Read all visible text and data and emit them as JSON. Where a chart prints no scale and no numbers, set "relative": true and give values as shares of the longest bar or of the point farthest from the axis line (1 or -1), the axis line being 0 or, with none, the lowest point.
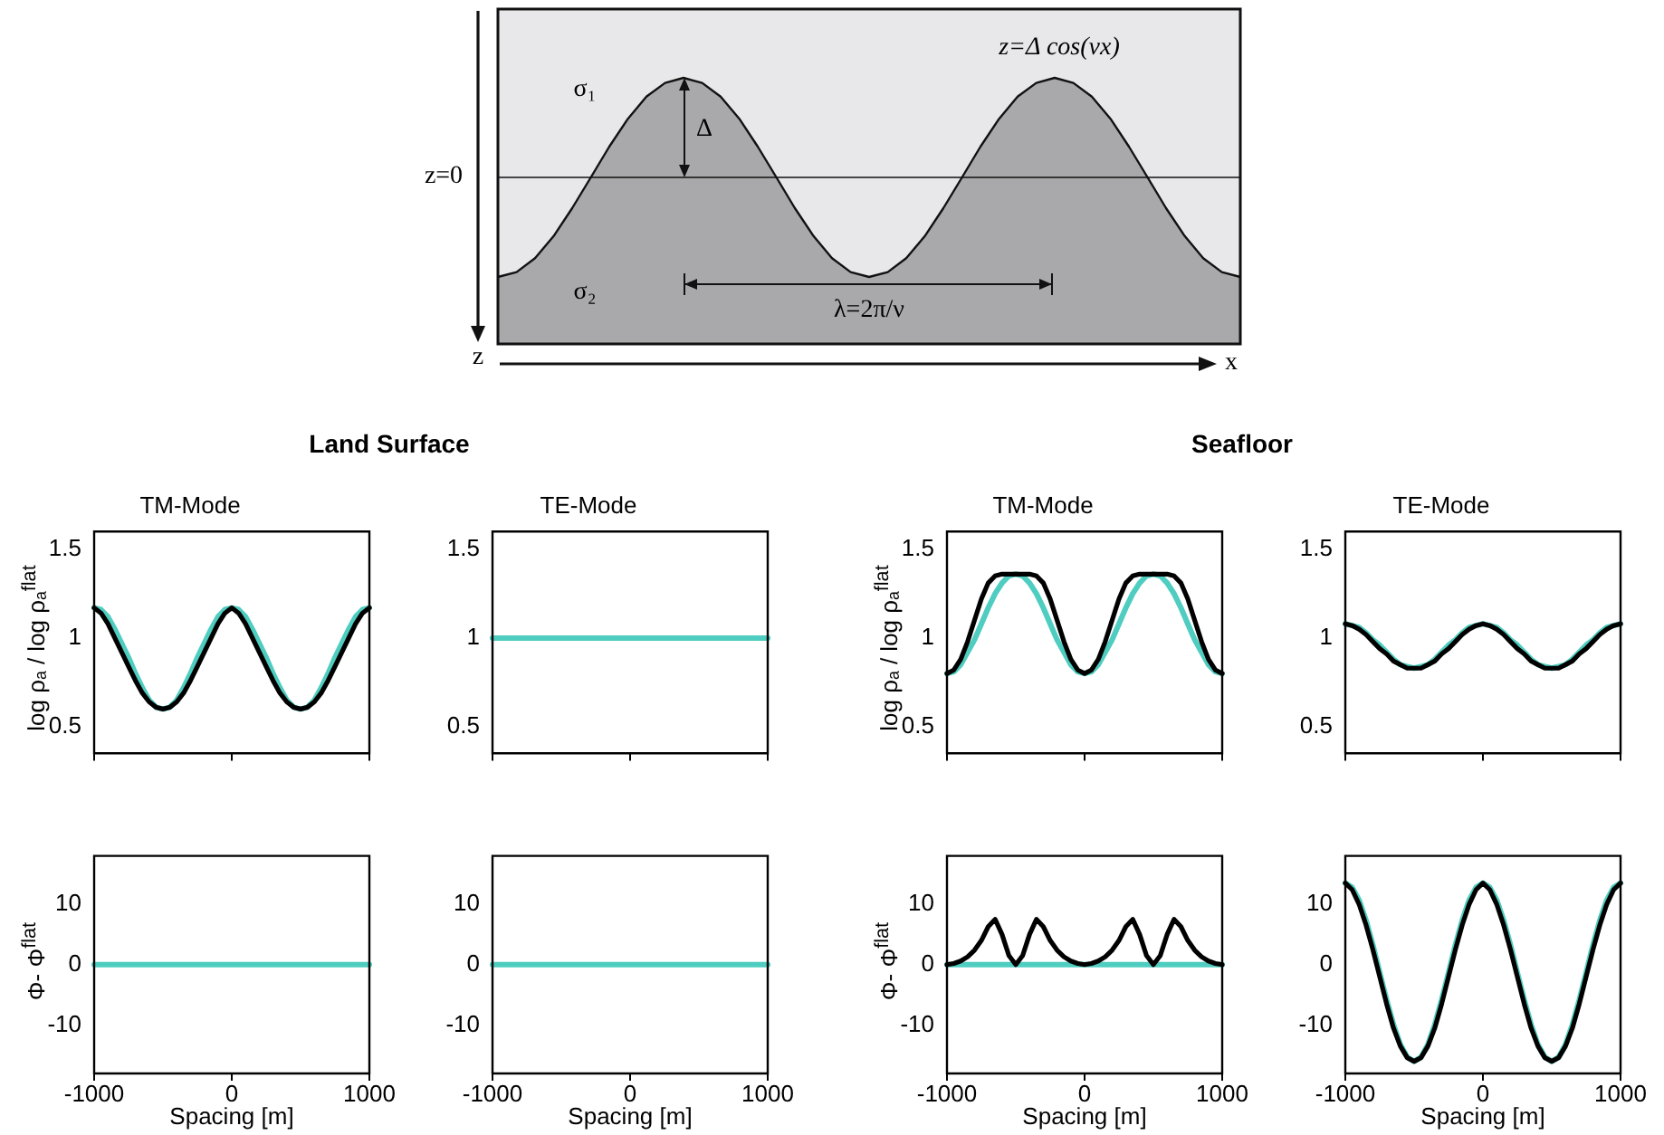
{
  "chart_data": [
    {
      "type": "area",
      "relative": true,
      "annotations": [
        "z=Δ cos(νx)",
        "σ₁",
        "σ₂",
        "Δ",
        "λ=2π/ν",
        "z",
        "x"
      ],
      "ref_lines": [
        {
          "axis": "y",
          "value": 0,
          "label": "z=0"
        }
      ],
      "categories": [
        null,
        null,
        null,
        null,
        null,
        null,
        null,
        null,
        null,
        null,
        null,
        null,
        null,
        null,
        null,
        null,
        null,
        null,
        null,
        null,
        null,
        null,
        null,
        null,
        null,
        null,
        null,
        null,
        null,
        null,
        null,
        null,
        null,
        null,
        null,
        null,
        null,
        null,
        null,
        null,
        null
      ],
      "series": [
        {
          "color": "#a9a9ab",
          "values": [
            -1,
            -0.95,
            -0.81,
            -0.59,
            -0.31,
            0,
            0.31,
            0.59,
            0.81,
            0.95,
            1,
            0.95,
            0.81,
            0.59,
            0.31,
            0,
            -0.31,
            -0.59,
            -0.81,
            -0.95,
            -1,
            -0.95,
            -0.81,
            -0.59,
            -0.31,
            0,
            0.31,
            0.59,
            0.81,
            0.95,
            1,
            0.95,
            0.81,
            0.59,
            0.31,
            0,
            -0.31,
            -0.59,
            -0.81,
            -0.95,
            -1
          ]
        }
      ]
    },
    {
      "type": "line",
      "title": "TM-Mode",
      "annotations": [
        "Land Surface"
      ],
      "ylabel": "log ρₐ / log ρₐ$^{flat}$",
      "xlim": [
        -1000,
        1000
      ],
      "xticks": [
        -1000,
        0,
        1000
      ],
      "ylim": [
        0.35,
        1.6
      ],
      "yticks": [
        0.5,
        1,
        1.5
      ],
      "tick_labels": "y",
      "x": [
        -1000,
        -950,
        -900,
        -850,
        -800,
        -750,
        -700,
        -650,
        -600,
        -550,
        -500,
        -450,
        -400,
        -350,
        -300,
        -250,
        -200,
        -150,
        -100,
        -50,
        0,
        50,
        100,
        150,
        200,
        250,
        300,
        350,
        400,
        450,
        500,
        550,
        600,
        650,
        700,
        750,
        800,
        850,
        900,
        950,
        1000
      ],
      "series": [
        {
          "color": "#000000",
          "values": [
            1.17,
            1.14,
            1.08,
            1,
            0.92,
            0.84,
            0.76,
            0.69,
            0.64,
            0.61,
            0.6,
            0.61,
            0.64,
            0.69,
            0.76,
            0.84,
            0.92,
            1,
            1.08,
            1.14,
            1.17,
            1.14,
            1.08,
            1,
            0.92,
            0.84,
            0.76,
            0.69,
            0.64,
            0.61,
            0.6,
            0.61,
            0.64,
            0.69,
            0.76,
            0.84,
            0.92,
            1,
            1.08,
            1.14,
            1.17
          ]
        },
        {
          "color": "#4ecdc0",
          "values": [
            1.17,
            1.16,
            1.12,
            1.05,
            0.97,
            0.89,
            0.8,
            0.72,
            0.65,
            0.61,
            0.6,
            0.61,
            0.65,
            0.72,
            0.8,
            0.89,
            0.97,
            1.05,
            1.12,
            1.16,
            1.17,
            1.16,
            1.12,
            1.05,
            0.97,
            0.89,
            0.8,
            0.72,
            0.65,
            0.61,
            0.6,
            0.61,
            0.65,
            0.72,
            0.8,
            0.89,
            0.97,
            1.05,
            1.12,
            1.16,
            1.17
          ]
        }
      ]
    },
    {
      "type": "line",
      "title": "TE-Mode",
      "xlim": [
        -1000,
        1000
      ],
      "xticks": [
        -1000,
        0,
        1000
      ],
      "ylim": [
        0.35,
        1.6
      ],
      "yticks": [
        0.5,
        1,
        1.5
      ],
      "tick_labels": "y",
      "x": [
        -1000,
        -950,
        -900,
        -850,
        -800,
        -750,
        -700,
        -650,
        -600,
        -550,
        -500,
        -450,
        -400,
        -350,
        -300,
        -250,
        -200,
        -150,
        -100,
        -50,
        0,
        50,
        100,
        150,
        200,
        250,
        300,
        350,
        400,
        450,
        500,
        550,
        600,
        650,
        700,
        750,
        800,
        850,
        900,
        950,
        1000
      ],
      "series": [
        {
          "color": "#4ecdc0",
          "values": [
            1,
            1,
            1,
            1,
            1,
            1,
            1,
            1,
            1,
            1,
            1,
            1,
            1,
            1,
            1,
            1,
            1,
            1,
            1,
            1,
            1,
            1,
            1,
            1,
            1,
            1,
            1,
            1,
            1,
            1,
            1,
            1,
            1,
            1,
            1,
            1,
            1,
            1,
            1,
            1,
            1
          ]
        }
      ]
    },
    {
      "type": "line",
      "title": "TM-Mode",
      "annotations": [
        "Seafloor"
      ],
      "ylabel": "log ρₐ / log ρₐ$^{flat}$",
      "xlim": [
        -1000,
        1000
      ],
      "xticks": [
        -1000,
        0,
        1000
      ],
      "ylim": [
        0.35,
        1.6
      ],
      "yticks": [
        0.5,
        1,
        1.5
      ],
      "tick_labels": "y",
      "x": [
        -1000,
        -950,
        -900,
        -850,
        -800,
        -750,
        -700,
        -650,
        -600,
        -550,
        -500,
        -450,
        -400,
        -350,
        -300,
        -250,
        -200,
        -150,
        -100,
        -50,
        0,
        50,
        100,
        150,
        200,
        250,
        300,
        350,
        400,
        450,
        500,
        550,
        600,
        650,
        700,
        750,
        800,
        850,
        900,
        950,
        1000
      ],
      "series": [
        {
          "color": "#000000",
          "values": [
            0.8,
            0.82,
            0.88,
            0.98,
            1.1,
            1.22,
            1.31,
            1.35,
            1.36,
            1.36,
            1.36,
            1.36,
            1.36,
            1.35,
            1.31,
            1.22,
            1.1,
            0.98,
            0.88,
            0.82,
            0.8,
            0.82,
            0.88,
            0.98,
            1.1,
            1.22,
            1.31,
            1.35,
            1.36,
            1.36,
            1.36,
            1.36,
            1.36,
            1.35,
            1.31,
            1.22,
            1.1,
            0.98,
            0.88,
            0.82,
            0.8
          ]
        },
        {
          "color": "#4ecdc0",
          "values": [
            0.8,
            0.81,
            0.85,
            0.92,
            0.99,
            1.08,
            1.17,
            1.25,
            1.31,
            1.35,
            1.36,
            1.35,
            1.31,
            1.25,
            1.17,
            1.08,
            0.99,
            0.92,
            0.85,
            0.81,
            0.8,
            0.81,
            0.85,
            0.92,
            0.99,
            1.08,
            1.17,
            1.25,
            1.31,
            1.35,
            1.36,
            1.35,
            1.31,
            1.25,
            1.17,
            1.08,
            0.99,
            0.92,
            0.85,
            0.81,
            0.8
          ]
        }
      ]
    },
    {
      "type": "line",
      "title": "TE-Mode",
      "xlim": [
        -1000,
        1000
      ],
      "xticks": [
        -1000,
        0,
        1000
      ],
      "ylim": [
        0.35,
        1.6
      ],
      "yticks": [
        0.5,
        1,
        1.5
      ],
      "tick_labels": "y",
      "x": [
        -1000,
        -950,
        -900,
        -850,
        -800,
        -750,
        -700,
        -650,
        -600,
        -550,
        -500,
        -450,
        -400,
        -350,
        -300,
        -250,
        -200,
        -150,
        -100,
        -50,
        0,
        50,
        100,
        150,
        200,
        250,
        300,
        350,
        400,
        450,
        500,
        550,
        600,
        650,
        700,
        750,
        800,
        850,
        900,
        950,
        1000
      ],
      "series": [
        {
          "color": "#000000",
          "values": [
            1.08,
            1.07,
            1.05,
            1.02,
            0.98,
            0.94,
            0.91,
            0.87,
            0.85,
            0.83,
            0.83,
            0.83,
            0.85,
            0.87,
            0.91,
            0.94,
            0.98,
            1.02,
            1.05,
            1.07,
            1.08,
            1.07,
            1.05,
            1.02,
            0.98,
            0.94,
            0.91,
            0.87,
            0.85,
            0.83,
            0.83,
            0.83,
            0.85,
            0.87,
            0.91,
            0.94,
            0.98,
            1.02,
            1.05,
            1.07,
            1.08
          ]
        },
        {
          "color": "#4ecdc0",
          "values": [
            1.08,
            1.07,
            1.06,
            1.03,
            0.99,
            0.96,
            0.92,
            0.88,
            0.85,
            0.84,
            0.83,
            0.84,
            0.85,
            0.88,
            0.92,
            0.96,
            0.99,
            1.03,
            1.06,
            1.07,
            1.08,
            1.07,
            1.06,
            1.03,
            0.99,
            0.96,
            0.92,
            0.88,
            0.85,
            0.84,
            0.83,
            0.84,
            0.85,
            0.88,
            0.92,
            0.96,
            0.99,
            1.03,
            1.06,
            1.07,
            1.08
          ]
        }
      ]
    },
    {
      "type": "line",
      "xlabel": "Spacing [m]",
      "ylabel": "Φ- Φ$^{flat}$",
      "xlim": [
        -1000,
        1000
      ],
      "xticks": [
        -1000,
        0,
        1000
      ],
      "ylim": [
        -18,
        18
      ],
      "yticks": [
        -10,
        0,
        10
      ],
      "x": [
        -1000,
        -950,
        -900,
        -850,
        -800,
        -750,
        -700,
        -650,
        -600,
        -550,
        -500,
        -450,
        -400,
        -350,
        -300,
        -250,
        -200,
        -150,
        -100,
        -50,
        0,
        50,
        100,
        150,
        200,
        250,
        300,
        350,
        400,
        450,
        500,
        550,
        600,
        650,
        700,
        750,
        800,
        850,
        900,
        950,
        1000
      ],
      "series": [
        {
          "color": "#4ecdc0",
          "values": [
            0,
            0,
            0,
            0,
            0,
            0,
            0,
            0,
            0,
            0,
            0,
            0,
            0,
            0,
            0,
            0,
            0,
            0,
            0,
            0,
            0,
            0,
            0,
            0,
            0,
            0,
            0,
            0,
            0,
            0,
            0,
            0,
            0,
            0,
            0,
            0,
            0,
            0,
            0,
            0,
            0
          ]
        }
      ]
    },
    {
      "type": "line",
      "xlabel": "Spacing [m]",
      "xlim": [
        -1000,
        1000
      ],
      "xticks": [
        -1000,
        0,
        1000
      ],
      "ylim": [
        -18,
        18
      ],
      "yticks": [
        -10,
        0,
        10
      ],
      "x": [
        -1000,
        -950,
        -900,
        -850,
        -800,
        -750,
        -700,
        -650,
        -600,
        -550,
        -500,
        -450,
        -400,
        -350,
        -300,
        -250,
        -200,
        -150,
        -100,
        -50,
        0,
        50,
        100,
        150,
        200,
        250,
        300,
        350,
        400,
        450,
        500,
        550,
        600,
        650,
        700,
        750,
        800,
        850,
        900,
        950,
        1000
      ],
      "series": [
        {
          "color": "#4ecdc0",
          "values": [
            0,
            0,
            0,
            0,
            0,
            0,
            0,
            0,
            0,
            0,
            0,
            0,
            0,
            0,
            0,
            0,
            0,
            0,
            0,
            0,
            0,
            0,
            0,
            0,
            0,
            0,
            0,
            0,
            0,
            0,
            0,
            0,
            0,
            0,
            0,
            0,
            0,
            0,
            0,
            0,
            0
          ]
        }
      ]
    },
    {
      "type": "line",
      "xlabel": "Spacing [m]",
      "ylabel": "Φ- Φ$^{flat}$",
      "xlim": [
        -1000,
        1000
      ],
      "xticks": [
        -1000,
        0,
        1000
      ],
      "ylim": [
        -18,
        18
      ],
      "yticks": [
        -10,
        0,
        10
      ],
      "x": [
        -1000,
        -950,
        -900,
        -850,
        -800,
        -750,
        -700,
        -650,
        -600,
        -550,
        -500,
        -450,
        -400,
        -350,
        -300,
        -250,
        -200,
        -150,
        -100,
        -50,
        0,
        50,
        100,
        150,
        200,
        250,
        300,
        350,
        400,
        450,
        500,
        550,
        600,
        650,
        700,
        750,
        800,
        850,
        900,
        950,
        1000
      ],
      "series": [
        {
          "color": "#000000",
          "values": [
            0,
            0.2,
            0.6,
            1.3,
            2.4,
            4,
            6.3,
            7.5,
            5,
            1.5,
            0,
            1.5,
            5,
            7.5,
            6.3,
            4,
            2.4,
            1.3,
            0.6,
            0.2,
            0,
            0.2,
            0.6,
            1.3,
            2.4,
            4,
            6.3,
            7.5,
            5,
            1.5,
            0,
            1.5,
            5,
            7.5,
            6.3,
            4,
            2.4,
            1.3,
            0.6,
            0.2,
            0
          ]
        },
        {
          "color": "#4ecdc0",
          "values": [
            0,
            0,
            0,
            0,
            0,
            0,
            0,
            0,
            0,
            0,
            0,
            0,
            0,
            0,
            0,
            0,
            0,
            0,
            0,
            0,
            0,
            0,
            0,
            0,
            0,
            0,
            0,
            0,
            0,
            0,
            0,
            0,
            0,
            0,
            0,
            0,
            0,
            0,
            0,
            0,
            0
          ]
        }
      ]
    },
    {
      "type": "line",
      "xlabel": "Spacing [m]",
      "xlim": [
        -1000,
        1000
      ],
      "xticks": [
        -1000,
        0,
        1000
      ],
      "ylim": [
        -18,
        18
      ],
      "yticks": [
        -10,
        0,
        10
      ],
      "x": [
        -1000,
        -950,
        -900,
        -850,
        -800,
        -750,
        -700,
        -650,
        -600,
        -550,
        -500,
        -450,
        -400,
        -350,
        -300,
        -250,
        -200,
        -150,
        -100,
        -50,
        0,
        50,
        100,
        150,
        200,
        250,
        300,
        350,
        400,
        450,
        500,
        550,
        600,
        650,
        700,
        750,
        800,
        850,
        900,
        950,
        1000
      ],
      "series": [
        {
          "color": "#000000",
          "values": [
            13.5,
            12.4,
            10,
            6.6,
            2.5,
            -2,
            -6.5,
            -10.5,
            -13.5,
            -15.4,
            -16,
            -15.4,
            -13.5,
            -10.5,
            -6.5,
            -2,
            2.5,
            6.6,
            10,
            12.4,
            13.5,
            12.4,
            10,
            6.6,
            2.5,
            -2,
            -6.5,
            -10.5,
            -13.5,
            -15.4,
            -16,
            -15.4,
            -13.5,
            -10.5,
            -6.5,
            -2,
            2.5,
            6.6,
            10,
            12.4,
            13.5
          ]
        },
        {
          "color": "#4ecdc0",
          "values": [
            13.5,
            12.8,
            10.7,
            7.4,
            3.3,
            -1.3,
            -5.8,
            -9.9,
            -13.2,
            -15.3,
            -16,
            -15.3,
            -13.2,
            -9.9,
            -5.8,
            -1.3,
            3.3,
            7.4,
            10.7,
            12.8,
            13.5,
            12.8,
            10.7,
            7.4,
            3.3,
            -1.3,
            -5.8,
            -9.9,
            -13.2,
            -15.3,
            -16,
            -15.3,
            -13.2,
            -9.9,
            -5.8,
            -1.3,
            3.3,
            7.4,
            10.7,
            12.8,
            13.5
          ]
        }
      ]
    }
  ]
}
